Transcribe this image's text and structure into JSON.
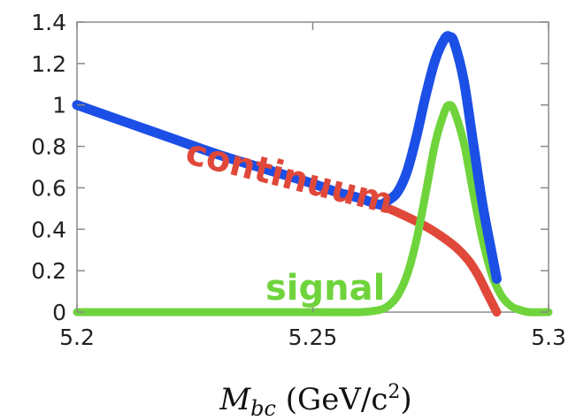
{
  "chart_data": {
    "type": "line",
    "xlabel": {
      "symbol": "M",
      "subscript": "bc",
      "unit_open": " (GeV/c",
      "unit_sup": "2",
      "unit_close": ")"
    },
    "xlim": [
      5.2,
      5.3
    ],
    "ylim": [
      0,
      1.4
    ],
    "x_ticks": [
      {
        "value": 5.2,
        "label": "5.2"
      },
      {
        "value": 5.25,
        "label": "5.25"
      },
      {
        "value": 5.3,
        "label": "5.3"
      }
    ],
    "y_ticks": [
      {
        "value": 0,
        "label": "0"
      },
      {
        "value": 0.2,
        "label": "0.2"
      },
      {
        "value": 0.4,
        "label": "0.4"
      },
      {
        "value": 0.6,
        "label": "0.6"
      },
      {
        "value": 0.8,
        "label": "0.8"
      },
      {
        "value": 1.0,
        "label": "1"
      },
      {
        "value": 1.2,
        "label": "1.2"
      },
      {
        "value": 1.4,
        "label": "1.4"
      }
    ],
    "grid": false,
    "series": [
      {
        "name": "continuum",
        "color": "#e0483a",
        "label_angle": 14,
        "x": [
          5.2,
          5.21,
          5.22,
          5.23,
          5.24,
          5.25,
          5.255,
          5.26,
          5.265,
          5.27,
          5.275,
          5.28,
          5.283,
          5.285,
          5.287,
          5.289
        ],
        "y": [
          1.0,
          0.92,
          0.84,
          0.76,
          0.69,
          0.62,
          0.58,
          0.55,
          0.51,
          0.46,
          0.4,
          0.32,
          0.25,
          0.18,
          0.09,
          0.0
        ]
      },
      {
        "name": "signal",
        "color": "#6fd43c",
        "label_angle": 0,
        "x": [
          5.2,
          5.21,
          5.22,
          5.23,
          5.24,
          5.25,
          5.26,
          5.264,
          5.266,
          5.268,
          5.27,
          5.272,
          5.274,
          5.276,
          5.278,
          5.279,
          5.28,
          5.282,
          5.284,
          5.286,
          5.288,
          5.29,
          5.292,
          5.294,
          5.296,
          5.3
        ],
        "y": [
          0,
          0,
          0,
          0,
          0,
          0,
          0,
          0.01,
          0.03,
          0.08,
          0.18,
          0.35,
          0.58,
          0.82,
          0.97,
          1.0,
          0.97,
          0.82,
          0.58,
          0.35,
          0.18,
          0.08,
          0.03,
          0.01,
          0,
          0
        ]
      },
      {
        "name": "",
        "color": "#1c4fe6",
        "x": [
          5.2,
          5.21,
          5.22,
          5.23,
          5.24,
          5.25,
          5.255,
          5.26,
          5.264,
          5.266,
          5.268,
          5.27,
          5.272,
          5.274,
          5.276,
          5.278,
          5.279,
          5.28,
          5.282,
          5.284,
          5.286,
          5.288,
          5.289
        ],
        "y": [
          1.0,
          0.92,
          0.84,
          0.76,
          0.69,
          0.62,
          0.58,
          0.55,
          0.52,
          0.54,
          0.58,
          0.68,
          0.85,
          1.05,
          1.22,
          1.32,
          1.33,
          1.3,
          1.12,
          0.82,
          0.52,
          0.28,
          0.16
        ]
      }
    ]
  }
}
